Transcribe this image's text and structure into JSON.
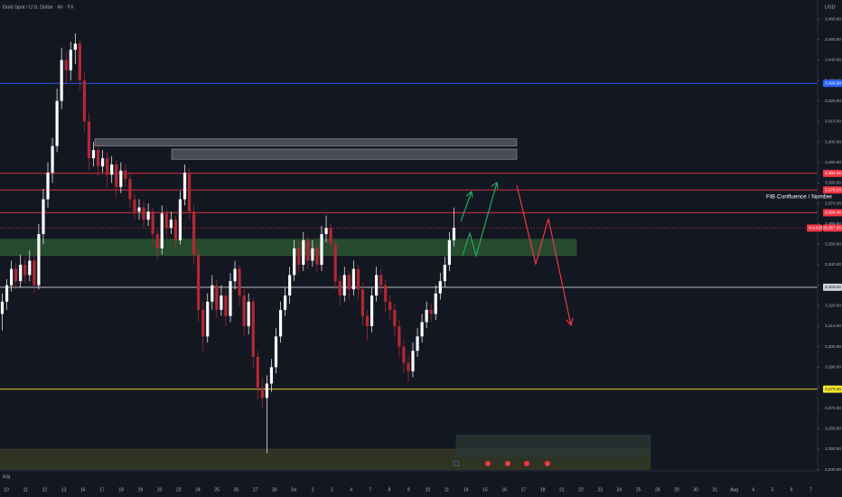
{
  "chart_data": {
    "type": "candlestick",
    "title": "Gold Spot / U.S. Dollar · 4h · FX",
    "currency": "USD",
    "indicator": "RSI",
    "symbol": "XAUUSD",
    "annotation": "FIB Confluence / Number",
    "up_color": "#ffffff",
    "down_color": "#b22833",
    "categories": [
      "10",
      "11",
      "12",
      "13",
      "16",
      "17",
      "18",
      "19",
      "20",
      "23",
      "24",
      "25",
      "26",
      "27",
      "30",
      "Jul",
      "2",
      "3",
      "4",
      "7",
      "8",
      "9",
      "10",
      "11",
      "14",
      "15",
      "16",
      "17",
      "18",
      "21",
      "22",
      "23",
      "24",
      "25",
      "28",
      "29",
      "30",
      "31",
      "Aug",
      "4",
      "5",
      "6",
      "7"
    ],
    "ohlc": [
      [
        3316,
        3326,
        3308,
        3322
      ],
      [
        3322,
        3333,
        3318,
        3330
      ],
      [
        3330,
        3342,
        3327,
        3338
      ],
      [
        3338,
        3341,
        3328,
        3332
      ],
      [
        3332,
        3345,
        3329,
        3340
      ],
      [
        3340,
        3343,
        3331,
        3335
      ],
      [
        3335,
        3347,
        3332,
        3342
      ],
      [
        3342,
        3345,
        3326,
        3330
      ],
      [
        3330,
        3360,
        3328,
        3355
      ],
      [
        3355,
        3377,
        3350,
        3372
      ],
      [
        3372,
        3390,
        3368,
        3385
      ],
      [
        3385,
        3402,
        3380,
        3398
      ],
      [
        3398,
        3426,
        3395,
        3420
      ],
      [
        3420,
        3446,
        3416,
        3440
      ],
      [
        3440,
        3444,
        3428,
        3435
      ],
      [
        3435,
        3449,
        3430,
        3445
      ],
      [
        3445,
        3453,
        3438,
        3448
      ],
      [
        3448,
        3450,
        3425,
        3430
      ],
      [
        3430,
        3434,
        3405,
        3410
      ],
      [
        3410,
        3414,
        3386,
        3392
      ],
      [
        3392,
        3400,
        3388,
        3396
      ],
      [
        3396,
        3399,
        3383,
        3388
      ],
      [
        3388,
        3396,
        3385,
        3392
      ],
      [
        3392,
        3395,
        3378,
        3384
      ],
      [
        3384,
        3393,
        3380,
        3389
      ],
      [
        3389,
        3391,
        3373,
        3378
      ],
      [
        3378,
        3390,
        3375,
        3386
      ],
      [
        3386,
        3389,
        3378,
        3382
      ],
      [
        3382,
        3385,
        3368,
        3372
      ],
      [
        3372,
        3375,
        3362,
        3366
      ],
      [
        3366,
        3372,
        3362,
        3368
      ],
      [
        3368,
        3371,
        3358,
        3362
      ],
      [
        3362,
        3370,
        3359,
        3366
      ],
      [
        3366,
        3368,
        3350,
        3355
      ],
      [
        3355,
        3358,
        3343,
        3348
      ],
      [
        3348,
        3369,
        3345,
        3365
      ],
      [
        3365,
        3367,
        3353,
        3358
      ],
      [
        3358,
        3366,
        3355,
        3362
      ],
      [
        3362,
        3364,
        3347,
        3352
      ],
      [
        3352,
        3376,
        3350,
        3372
      ],
      [
        3372,
        3389,
        3369,
        3385
      ],
      [
        3385,
        3387,
        3362,
        3366
      ],
      [
        3366,
        3369,
        3340,
        3345
      ],
      [
        3345,
        3348,
        3312,
        3318
      ],
      [
        3318,
        3322,
        3298,
        3305
      ],
      [
        3305,
        3326,
        3302,
        3322
      ],
      [
        3322,
        3335,
        3318,
        3330
      ],
      [
        3330,
        3333,
        3314,
        3318
      ],
      [
        3318,
        3330,
        3315,
        3325
      ],
      [
        3325,
        3328,
        3310,
        3315
      ],
      [
        3315,
        3336,
        3312,
        3332
      ],
      [
        3332,
        3342,
        3328,
        3338
      ],
      [
        3338,
        3340,
        3320,
        3325
      ],
      [
        3325,
        3328,
        3305,
        3310
      ],
      [
        3310,
        3326,
        3306,
        3322
      ],
      [
        3322,
        3324,
        3290,
        3295
      ],
      [
        3295,
        3298,
        3274,
        3280
      ],
      [
        3280,
        3285,
        3270,
        3275
      ],
      [
        3275,
        3286,
        3248,
        3282
      ],
      [
        3282,
        3294,
        3278,
        3290
      ],
      [
        3290,
        3309,
        3287,
        3305
      ],
      [
        3305,
        3322,
        3302,
        3318
      ],
      [
        3318,
        3329,
        3315,
        3325
      ],
      [
        3325,
        3339,
        3321,
        3335
      ],
      [
        3335,
        3352,
        3332,
        3348
      ],
      [
        3348,
        3351,
        3336,
        3340
      ],
      [
        3340,
        3356,
        3337,
        3352
      ],
      [
        3352,
        3354,
        3338,
        3342
      ],
      [
        3342,
        3352,
        3339,
        3348
      ],
      [
        3348,
        3350,
        3336,
        3340
      ],
      [
        3340,
        3359,
        3337,
        3355
      ],
      [
        3355,
        3364,
        3351,
        3358
      ],
      [
        3358,
        3360,
        3346,
        3350
      ],
      [
        3350,
        3352,
        3328,
        3332
      ],
      [
        3332,
        3335,
        3320,
        3325
      ],
      [
        3325,
        3339,
        3322,
        3335
      ],
      [
        3335,
        3337,
        3323,
        3328
      ],
      [
        3328,
        3342,
        3325,
        3338
      ],
      [
        3338,
        3340,
        3323,
        3328
      ],
      [
        3328,
        3331,
        3310,
        3315
      ],
      [
        3315,
        3318,
        3303,
        3310
      ],
      [
        3310,
        3329,
        3307,
        3325
      ],
      [
        3325,
        3339,
        3322,
        3335
      ],
      [
        3335,
        3338,
        3326,
        3330
      ],
      [
        3330,
        3333,
        3317,
        3322
      ],
      [
        3322,
        3325,
        3313,
        3318
      ],
      [
        3318,
        3321,
        3305,
        3310
      ],
      [
        3310,
        3313,
        3295,
        3300
      ],
      [
        3300,
        3303,
        3287,
        3292
      ],
      [
        3292,
        3296,
        3283,
        3288
      ],
      [
        3288,
        3302,
        3285,
        3298
      ],
      [
        3298,
        3309,
        3295,
        3305
      ],
      [
        3305,
        3316,
        3302,
        3312
      ],
      [
        3312,
        3322,
        3309,
        3318
      ],
      [
        3318,
        3321,
        3312,
        3316
      ],
      [
        3316,
        3330,
        3313,
        3326
      ],
      [
        3326,
        3336,
        3323,
        3332
      ],
      [
        3332,
        3344,
        3329,
        3340
      ],
      [
        3340,
        3356,
        3337,
        3352
      ],
      [
        3352,
        3368,
        3349,
        3358
      ]
    ],
    "ylim": [
      3239.4,
      3469.3
    ],
    "yticks": [
      {
        "value": 3240,
        "label": "3,240.00"
      },
      {
        "value": 3250,
        "label": "3,250.00"
      },
      {
        "value": 3260,
        "label": "3,260.00"
      },
      {
        "value": 3270,
        "label": "3,270.00"
      },
      {
        "value": 3280,
        "label": "3,280.00"
      },
      {
        "value": 3290,
        "label": "3,290.00"
      },
      {
        "value": 3300,
        "label": "3,300.00"
      },
      {
        "value": 3310,
        "label": "3,310.00"
      },
      {
        "value": 3320,
        "label": "3,320.00"
      },
      {
        "value": 3330,
        "label": "3,330.00"
      },
      {
        "value": 3340,
        "label": "3,340.00"
      },
      {
        "value": 3350,
        "label": "3,350.00"
      },
      {
        "value": 3360,
        "label": "3,360.00"
      },
      {
        "value": 3370,
        "label": "3,370.00"
      },
      {
        "value": 3380,
        "label": "3,380.00"
      },
      {
        "value": 3390,
        "label": "3,390.00"
      },
      {
        "value": 3400,
        "label": "3,400.00"
      },
      {
        "value": 3410,
        "label": "3,410.00"
      },
      {
        "value": 3420,
        "label": "3,420.00"
      },
      {
        "value": 3430,
        "label": "3,430.00"
      },
      {
        "value": 3440,
        "label": "3,440.00"
      },
      {
        "value": 3450,
        "label": "3,450.00"
      },
      {
        "value": 3460,
        "label": "3,460.00"
      }
    ],
    "levels": [
      {
        "value": 3428.58,
        "label": "3,428.58",
        "color": "#2962ff"
      },
      {
        "value": 3384.65,
        "label": "3,384.65",
        "color": "#f23645"
      },
      {
        "value": 3376.54,
        "label": "3,376.54",
        "color": "#f23645"
      },
      {
        "value": 3365.46,
        "label": "3,365.46",
        "color": "#f23645"
      },
      {
        "value": 3357.95,
        "label": "3,357.95",
        "color": "#f23645",
        "dotted": true
      },
      {
        "value": 3329.02,
        "label": "3,329.02",
        "color": "#d1d4dc"
      },
      {
        "value": 3279.26,
        "label": "3,279.26",
        "color": "#f5e72a"
      }
    ],
    "zones": [
      {
        "range": [
          3352.5,
          3344.5
        ],
        "color": "#2e5d34"
      },
      {
        "range": [
          3401.5,
          3398
        ],
        "color": "#5d606b"
      },
      {
        "range": [
          3396.5,
          3391.5
        ],
        "color": "#5d606b"
      },
      {
        "range": [
          3250,
          3240
        ],
        "color": "#3a3d26"
      },
      {
        "range": [
          3257,
          3246
        ],
        "color": "#2a3a34"
      }
    ]
  }
}
